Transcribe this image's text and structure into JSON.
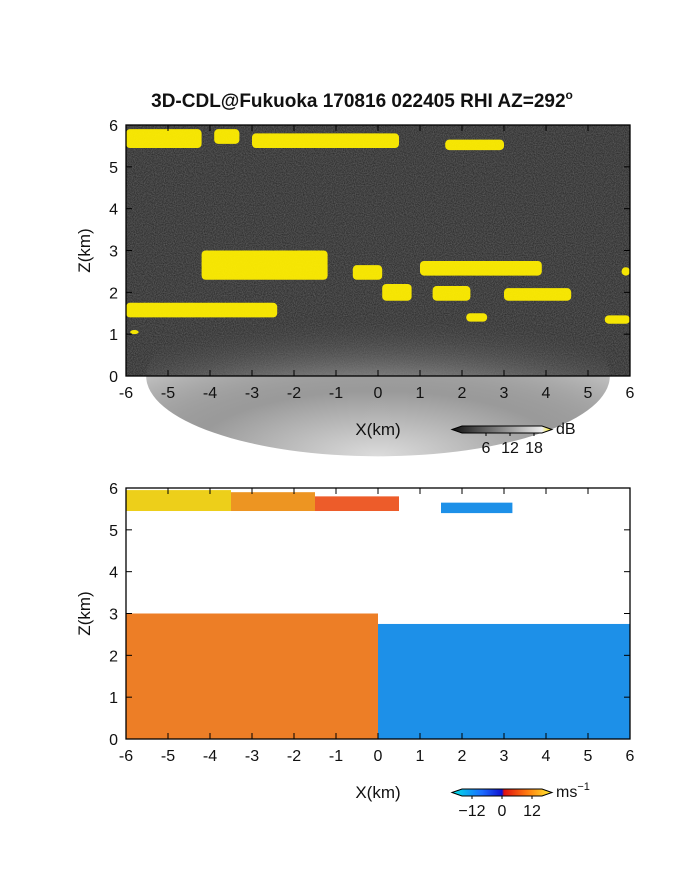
{
  "title_main": "3D-CDL@Fukuoka 170816 022405 RHI AZ=292",
  "title_deg": "o",
  "chart_data": [
    {
      "type": "heatmap",
      "name": "reflectivity-panel",
      "xlabel": "X(km)",
      "ylabel": "Z(km)",
      "xlim": [
        -6,
        6
      ],
      "ylim": [
        0,
        6
      ],
      "xticks": [
        "-6",
        "-5",
        "-4",
        "-3",
        "-2",
        "-1",
        "0",
        "1",
        "2",
        "3",
        "4",
        "5",
        "6"
      ],
      "yticks": [
        "0",
        "1",
        "2",
        "3",
        "4",
        "5",
        "6"
      ],
      "background": "#202020",
      "colorbar": {
        "unit": "dB",
        "ticks": [
          "6",
          "12",
          "18"
        ],
        "range": [
          0,
          20
        ]
      },
      "highlight_color": "#ffee00",
      "layers": [
        {
          "x": [
            -6,
            -4.2
          ],
          "z": [
            5.45,
            5.9
          ]
        },
        {
          "x": [
            -3.9,
            -3.3
          ],
          "z": [
            5.55,
            5.9
          ]
        },
        {
          "x": [
            -3.0,
            0.5
          ],
          "z": [
            5.45,
            5.8
          ]
        },
        {
          "x": [
            1.6,
            3.0
          ],
          "z": [
            5.4,
            5.65
          ]
        },
        {
          "x": [
            -4.2,
            -1.2
          ],
          "z": [
            2.3,
            3.0
          ]
        },
        {
          "x": [
            -0.6,
            0.1
          ],
          "z": [
            2.3,
            2.65
          ]
        },
        {
          "x": [
            0.1,
            0.8
          ],
          "z": [
            1.8,
            2.2
          ]
        },
        {
          "x": [
            1.0,
            3.9
          ],
          "z": [
            2.4,
            2.75
          ]
        },
        {
          "x": [
            1.3,
            2.2
          ],
          "z": [
            1.8,
            2.15
          ]
        },
        {
          "x": [
            3.0,
            4.6
          ],
          "z": [
            1.8,
            2.1
          ]
        },
        {
          "x": [
            5.8,
            6.0
          ],
          "z": [
            2.4,
            2.6
          ]
        },
        {
          "x": [
            -6,
            -2.4
          ],
          "z": [
            1.4,
            1.75
          ]
        },
        {
          "x": [
            2.1,
            2.6
          ],
          "z": [
            1.3,
            1.5
          ]
        },
        {
          "x": [
            5.4,
            6.0
          ],
          "z": [
            1.25,
            1.45
          ]
        },
        {
          "x": [
            -5.9,
            -5.7
          ],
          "z": [
            1.0,
            1.1
          ]
        }
      ]
    },
    {
      "type": "heatmap",
      "name": "velocity-panel",
      "xlabel": "X(km)",
      "ylabel": "Z(km)",
      "xlim": [
        -6,
        6
      ],
      "ylim": [
        0,
        6
      ],
      "xticks": [
        "-6",
        "-5",
        "-4",
        "-3",
        "-2",
        "-1",
        "0",
        "1",
        "2",
        "3",
        "4",
        "5",
        "6"
      ],
      "yticks": [
        "0",
        "1",
        "2",
        "3",
        "4",
        "5",
        "6"
      ],
      "background": "#ffffff",
      "colorbar": {
        "unit": "ms",
        "unit_exp": "−1",
        "ticks": [
          "−12",
          "0",
          "12"
        ],
        "range": [
          -16,
          16
        ]
      },
      "regions": [
        {
          "x": [
            -6,
            -3.5
          ],
          "z": [
            5.45,
            5.95
          ],
          "v": 13
        },
        {
          "x": [
            -3.5,
            -1.5
          ],
          "z": [
            5.45,
            5.9
          ],
          "v": 8
        },
        {
          "x": [
            -1.5,
            0.5
          ],
          "z": [
            5.45,
            5.8
          ],
          "v": 3
        },
        {
          "x": [
            1.5,
            3.2
          ],
          "z": [
            5.4,
            5.65
          ],
          "v": -8
        },
        {
          "x": [
            -6,
            0
          ],
          "z": [
            0.0,
            3.0
          ],
          "v": 6
        },
        {
          "x": [
            0,
            6
          ],
          "z": [
            0.0,
            2.75
          ],
          "v": -8
        }
      ]
    }
  ]
}
